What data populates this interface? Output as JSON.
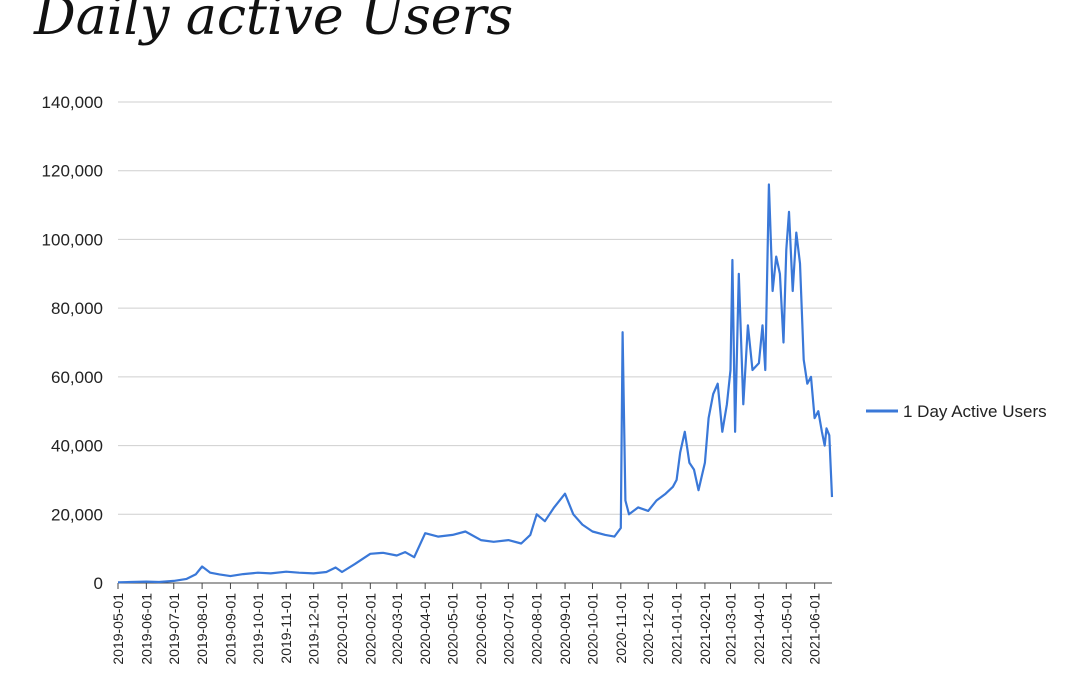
{
  "chart_data": {
    "type": "line",
    "title": "Daily active Users",
    "xlabel": "",
    "ylabel": "",
    "ylim": [
      0,
      140000
    ],
    "yticks": [
      0,
      20000,
      40000,
      60000,
      80000,
      100000,
      120000,
      140000
    ],
    "ytick_labels": [
      "0",
      "20,000",
      "40,000",
      "60,000",
      "80,000",
      "100,000",
      "120,000",
      "140,000"
    ],
    "xlim": [
      "2019-05-01",
      "2021-06-20"
    ],
    "xtick_labels": [
      "2019-05-01",
      "2019-06-01",
      "2019-07-01",
      "2019-08-01",
      "2019-09-01",
      "2019-10-01",
      "2019-11-01",
      "2019-12-01",
      "2020-01-01",
      "2020-02-01",
      "2020-03-01",
      "2020-04-01",
      "2020-05-01",
      "2020-06-01",
      "2020-07-01",
      "2020-08-01",
      "2020-09-01",
      "2020-10-01",
      "2020-11-01",
      "2020-12-01",
      "2021-01-01",
      "2021-02-01",
      "2021-03-01",
      "2021-04-01",
      "2021-05-01",
      "2021-06-01"
    ],
    "grid": "horizontal",
    "legend_position": "right",
    "color": "#3a78d8",
    "series": [
      {
        "name": "1 Day Active Users",
        "x": [
          "2019-05-01",
          "2019-05-15",
          "2019-06-01",
          "2019-06-15",
          "2019-07-01",
          "2019-07-15",
          "2019-07-25",
          "2019-08-01",
          "2019-08-10",
          "2019-08-20",
          "2019-09-01",
          "2019-09-15",
          "2019-10-01",
          "2019-10-15",
          "2019-11-01",
          "2019-11-15",
          "2019-12-01",
          "2019-12-15",
          "2019-12-25",
          "2020-01-01",
          "2020-01-15",
          "2020-02-01",
          "2020-02-15",
          "2020-03-01",
          "2020-03-10",
          "2020-03-20",
          "2020-04-01",
          "2020-04-15",
          "2020-05-01",
          "2020-05-15",
          "2020-06-01",
          "2020-06-15",
          "2020-07-01",
          "2020-07-15",
          "2020-07-25",
          "2020-08-01",
          "2020-08-10",
          "2020-08-20",
          "2020-09-01",
          "2020-09-10",
          "2020-09-20",
          "2020-10-01",
          "2020-10-15",
          "2020-10-25",
          "2020-11-01",
          "2020-11-03",
          "2020-11-06",
          "2020-11-10",
          "2020-11-20",
          "2020-12-01",
          "2020-12-10",
          "2020-12-20",
          "2020-12-28",
          "2021-01-01",
          "2021-01-05",
          "2021-01-10",
          "2021-01-15",
          "2021-01-20",
          "2021-01-25",
          "2021-02-01",
          "2021-02-05",
          "2021-02-10",
          "2021-02-15",
          "2021-02-20",
          "2021-02-25",
          "2021-03-01",
          "2021-03-03",
          "2021-03-06",
          "2021-03-10",
          "2021-03-15",
          "2021-03-20",
          "2021-03-25",
          "2021-04-01",
          "2021-04-05",
          "2021-04-08",
          "2021-04-12",
          "2021-04-16",
          "2021-04-20",
          "2021-04-24",
          "2021-04-28",
          "2021-05-01",
          "2021-05-04",
          "2021-05-08",
          "2021-05-12",
          "2021-05-16",
          "2021-05-20",
          "2021-05-24",
          "2021-05-28",
          "2021-06-01",
          "2021-06-05",
          "2021-06-09",
          "2021-06-12",
          "2021-06-14",
          "2021-06-17",
          "2021-06-20"
        ],
        "y": [
          200,
          300,
          400,
          300,
          600,
          1200,
          2500,
          4800,
          3000,
          2500,
          2000,
          2600,
          3000,
          2800,
          3300,
          3000,
          2800,
          3200,
          4500,
          3200,
          5500,
          8500,
          8800,
          8000,
          9000,
          7500,
          14500,
          13500,
          14000,
          15000,
          12500,
          12000,
          12500,
          11500,
          14000,
          20000,
          18000,
          22000,
          26000,
          20000,
          17000,
          15000,
          14000,
          13500,
          16000,
          73000,
          24000,
          20000,
          22000,
          21000,
          24000,
          26000,
          28000,
          30000,
          38000,
          44000,
          35000,
          33000,
          27000,
          35000,
          48000,
          55000,
          58000,
          44000,
          52000,
          62000,
          94000,
          44000,
          90000,
          52000,
          75000,
          62000,
          64000,
          75000,
          62000,
          116000,
          85000,
          95000,
          90000,
          70000,
          97000,
          108000,
          85000,
          102000,
          93000,
          65000,
          58000,
          60000,
          48000,
          50000,
          44000,
          40000,
          45000,
          43000,
          25000
        ]
      }
    ]
  }
}
